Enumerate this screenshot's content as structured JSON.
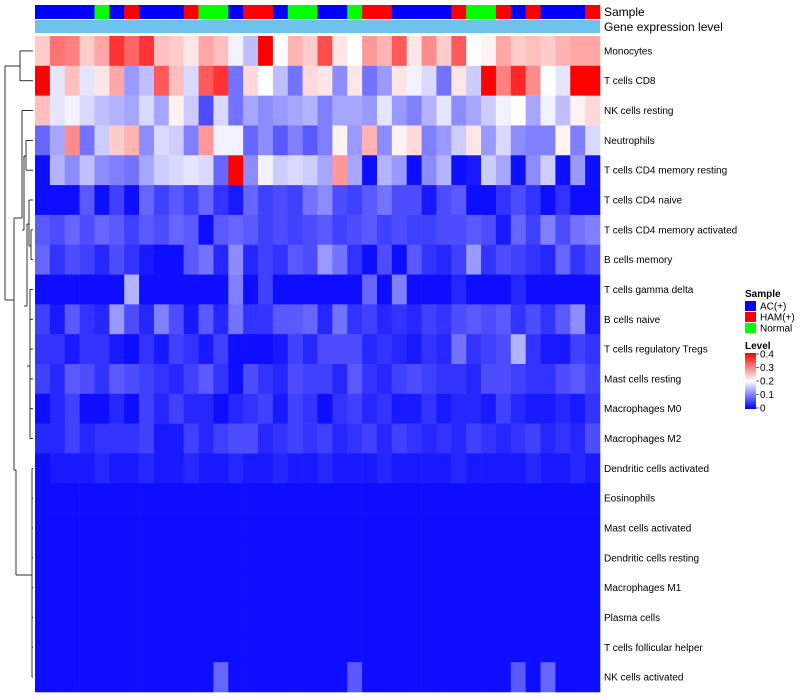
{
  "chart_data": {
    "type": "heatmap",
    "title": "",
    "annotation_tracks": [
      "Sample",
      "Gene expression level"
    ],
    "rows": [
      "Monocytes",
      "T cells CD8",
      "NK cells resting",
      "Neutrophils",
      "T cells CD4 memory resting",
      "T cells CD4 naive",
      "T cells CD4 memory activated",
      "B cells memory",
      "T cells gamma delta",
      "B cells naive",
      "T cells regulatory  Tregs",
      "Mast cells resting",
      "Macrophages M0",
      "Macrophages M2",
      "Dendritic cells activated",
      "Eosinophils",
      "Mast cells activated",
      "Dendritic cells resting",
      "Macrophages M1",
      "Plasma cells",
      "T cells follicular helper",
      "NK cells activated"
    ],
    "n_samples": 38,
    "sample_groups": [
      "AC(+)",
      "AC(+)",
      "AC(+)",
      "AC(+)",
      "Normal",
      "AC(+)",
      "HAM(+)",
      "AC(+)",
      "AC(+)",
      "AC(+)",
      "HAM(+)",
      "Normal",
      "Normal",
      "AC(+)",
      "HAM(+)",
      "HAM(+)",
      "AC(+)",
      "Normal",
      "Normal",
      "AC(+)",
      "AC(+)",
      "Normal",
      "HAM(+)",
      "HAM(+)",
      "AC(+)",
      "AC(+)",
      "AC(+)",
      "AC(+)",
      "HAM(+)",
      "Normal",
      "Normal",
      "HAM(+)",
      "AC(+)",
      "HAM(+)",
      "AC(+)",
      "AC(+)",
      "AC(+)",
      "HAM(+)"
    ],
    "gene_expression_level": "uniform (single level across all samples)",
    "values": [
      [
        0.24,
        0.31,
        0.3,
        0.24,
        0.27,
        0.36,
        0.32,
        0.36,
        0.25,
        0.24,
        0.22,
        0.27,
        0.25,
        0.19,
        0.15,
        0.4,
        0.2,
        0.26,
        0.24,
        0.34,
        0.22,
        0.2,
        0.28,
        0.26,
        0.33,
        0.22,
        0.29,
        0.24,
        0.33,
        0.2,
        0.21,
        0.27,
        0.24,
        0.25,
        0.24,
        0.26,
        0.27,
        0.27
      ],
      [
        0.4,
        0.18,
        0.25,
        0.18,
        0.22,
        0.27,
        0.12,
        0.15,
        0.33,
        0.25,
        0.17,
        0.33,
        0.36,
        0.09,
        0.23,
        0.2,
        0.15,
        0.09,
        0.23,
        0.22,
        0.11,
        0.22,
        0.09,
        0.12,
        0.22,
        0.19,
        0.17,
        0.09,
        0.22,
        0.16,
        0.4,
        0.3,
        0.37,
        0.29,
        0.2,
        0.18,
        0.4,
        0.4
      ],
      [
        0.25,
        0.18,
        0.19,
        0.17,
        0.15,
        0.14,
        0.13,
        0.17,
        0.13,
        0.21,
        0.16,
        0.06,
        0.17,
        0.09,
        0.13,
        0.11,
        0.12,
        0.13,
        0.14,
        0.1,
        0.13,
        0.13,
        0.12,
        0.18,
        0.12,
        0.1,
        0.14,
        0.18,
        0.11,
        0.13,
        0.16,
        0.19,
        0.2,
        0.13,
        0.19,
        0.15,
        0.21,
        0.23
      ],
      [
        0.08,
        0.13,
        0.29,
        0.09,
        0.16,
        0.24,
        0.26,
        0.11,
        0.17,
        0.16,
        0.1,
        0.28,
        0.19,
        0.19,
        0.08,
        0.11,
        0.07,
        0.1,
        0.07,
        0.1,
        0.21,
        0.12,
        0.26,
        0.11,
        0.21,
        0.23,
        0.1,
        0.12,
        0.16,
        0.22,
        0.12,
        0.17,
        0.11,
        0.1,
        0.1,
        0.21,
        0.1,
        0.17
      ],
      [
        0.01,
        0.14,
        0.11,
        0.15,
        0.11,
        0.1,
        0.09,
        0.13,
        0.16,
        0.17,
        0.18,
        0.17,
        0.08,
        0.4,
        0.11,
        0.19,
        0.16,
        0.17,
        0.16,
        0.13,
        0.28,
        0.13,
        0.01,
        0.14,
        0.12,
        0.01,
        0.11,
        0.14,
        0.01,
        0.02,
        0.16,
        0.13,
        0.01,
        0.11,
        0.16,
        0.01,
        0.12,
        0.01
      ],
      [
        0.01,
        0.01,
        0.01,
        0.07,
        0.01,
        0.05,
        0.01,
        0.08,
        0.05,
        0.07,
        0.05,
        0.08,
        0.04,
        0.02,
        0.08,
        0.05,
        0.06,
        0.05,
        0.09,
        0.11,
        0.06,
        0.05,
        0.07,
        0.09,
        0.06,
        0.06,
        0.02,
        0.06,
        0.07,
        0.01,
        0.01,
        0.04,
        0.06,
        0.04,
        0.01,
        0.04,
        0.01,
        0.01
      ],
      [
        0.07,
        0.06,
        0.08,
        0.06,
        0.08,
        0.07,
        0.05,
        0.07,
        0.06,
        0.08,
        0.07,
        0.01,
        0.07,
        0.08,
        0.07,
        0.05,
        0.06,
        0.05,
        0.06,
        0.07,
        0.05,
        0.06,
        0.07,
        0.05,
        0.06,
        0.05,
        0.05,
        0.06,
        0.06,
        0.07,
        0.06,
        0.02,
        0.08,
        0.05,
        0.1,
        0.06,
        0.09,
        0.1
      ],
      [
        0.08,
        0.04,
        0.06,
        0.05,
        0.03,
        0.06,
        0.04,
        0.02,
        0.01,
        0.01,
        0.07,
        0.09,
        0.03,
        0.11,
        0.03,
        0.05,
        0.04,
        0.07,
        0.06,
        0.12,
        0.09,
        0.04,
        0.01,
        0.06,
        0.01,
        0.07,
        0.04,
        0.03,
        0.05,
        0.12,
        0.04,
        0.06,
        0.05,
        0.04,
        0.03,
        0.08,
        0.04,
        0.06
      ],
      [
        0.01,
        0.01,
        0.01,
        0.01,
        0.01,
        0.01,
        0.14,
        0.01,
        0.01,
        0.01,
        0.01,
        0.01,
        0.01,
        0.1,
        0.01,
        0.05,
        0.01,
        0.01,
        0.01,
        0.01,
        0.01,
        0.01,
        0.08,
        0.01,
        0.1,
        0.01,
        0.01,
        0.01,
        0.03,
        0.01,
        0.01,
        0.01,
        0.03,
        0.01,
        0.01,
        0.01,
        0.01,
        0.01
      ],
      [
        0.05,
        0.02,
        0.07,
        0.04,
        0.03,
        0.12,
        0.06,
        0.03,
        0.1,
        0.06,
        0.02,
        0.07,
        0.03,
        0.09,
        0.04,
        0.04,
        0.07,
        0.07,
        0.08,
        0.03,
        0.09,
        0.04,
        0.05,
        0.03,
        0.04,
        0.03,
        0.05,
        0.04,
        0.06,
        0.07,
        0.06,
        0.07,
        0.04,
        0.06,
        0.04,
        0.07,
        0.11,
        0.02
      ],
      [
        0.04,
        0.04,
        0.02,
        0.04,
        0.04,
        0.02,
        0.01,
        0.04,
        0.02,
        0.05,
        0.04,
        0.02,
        0.05,
        0.01,
        0.01,
        0.01,
        0.02,
        0.05,
        0.03,
        0.06,
        0.06,
        0.06,
        0.03,
        0.04,
        0.03,
        0.02,
        0.04,
        0.03,
        0.09,
        0.04,
        0.05,
        0.06,
        0.14,
        0.04,
        0.02,
        0.02,
        0.05,
        0.04
      ],
      [
        0.05,
        0.03,
        0.07,
        0.06,
        0.04,
        0.07,
        0.06,
        0.05,
        0.04,
        0.03,
        0.05,
        0.07,
        0.04,
        0.01,
        0.06,
        0.04,
        0.03,
        0.06,
        0.05,
        0.05,
        0.03,
        0.07,
        0.04,
        0.03,
        0.05,
        0.06,
        0.05,
        0.04,
        0.04,
        0.03,
        0.06,
        0.06,
        0.05,
        0.04,
        0.04,
        0.06,
        0.07,
        0.05
      ],
      [
        0.01,
        0.03,
        0.05,
        0.01,
        0.01,
        0.03,
        0.01,
        0.05,
        0.03,
        0.05,
        0.03,
        0.03,
        0.01,
        0.03,
        0.04,
        0.05,
        0.02,
        0.05,
        0.04,
        0.01,
        0.04,
        0.05,
        0.03,
        0.04,
        0.02,
        0.02,
        0.04,
        0.02,
        0.03,
        0.03,
        0.02,
        0.05,
        0.03,
        0.02,
        0.02,
        0.03,
        0.02,
        0.04
      ],
      [
        0.03,
        0.03,
        0.05,
        0.03,
        0.04,
        0.04,
        0.04,
        0.05,
        0.02,
        0.02,
        0.05,
        0.03,
        0.05,
        0.06,
        0.06,
        0.03,
        0.04,
        0.05,
        0.04,
        0.05,
        0.03,
        0.04,
        0.05,
        0.03,
        0.05,
        0.04,
        0.03,
        0.04,
        0.03,
        0.05,
        0.04,
        0.03,
        0.04,
        0.05,
        0.03,
        0.04,
        0.03,
        0.06
      ],
      [
        0.01,
        0.02,
        0.02,
        0.02,
        0.03,
        0.02,
        0.02,
        0.03,
        0.02,
        0.02,
        0.03,
        0.02,
        0.02,
        0.03,
        0.02,
        0.02,
        0.03,
        0.02,
        0.02,
        0.03,
        0.02,
        0.02,
        0.02,
        0.03,
        0.02,
        0.02,
        0.02,
        0.02,
        0.03,
        0.02,
        0.02,
        0.02,
        0.02,
        0.03,
        0.02,
        0.02,
        0.03,
        0.02
      ],
      [
        0.01,
        0.01,
        0.01,
        0.01,
        0.01,
        0.01,
        0.01,
        0.01,
        0.01,
        0.01,
        0.01,
        0.01,
        0.01,
        0.01,
        0.01,
        0.01,
        0.01,
        0.01,
        0.01,
        0.01,
        0.01,
        0.01,
        0.01,
        0.01,
        0.01,
        0.01,
        0.01,
        0.01,
        0.01,
        0.01,
        0.01,
        0.01,
        0.01,
        0.01,
        0.01,
        0.01,
        0.01,
        0.01
      ],
      [
        0.01,
        0.01,
        0.01,
        0.01,
        0.01,
        0.01,
        0.01,
        0.01,
        0.01,
        0.01,
        0.01,
        0.01,
        0.01,
        0.01,
        0.01,
        0.01,
        0.01,
        0.01,
        0.01,
        0.01,
        0.01,
        0.01,
        0.01,
        0.01,
        0.01,
        0.01,
        0.01,
        0.01,
        0.01,
        0.01,
        0.01,
        0.01,
        0.01,
        0.01,
        0.01,
        0.01,
        0.01,
        0.01
      ],
      [
        0.01,
        0.01,
        0.01,
        0.01,
        0.01,
        0.01,
        0.01,
        0.01,
        0.01,
        0.01,
        0.01,
        0.01,
        0.01,
        0.01,
        0.01,
        0.01,
        0.01,
        0.01,
        0.01,
        0.01,
        0.01,
        0.01,
        0.01,
        0.01,
        0.01,
        0.01,
        0.01,
        0.01,
        0.01,
        0.01,
        0.01,
        0.01,
        0.01,
        0.01,
        0.01,
        0.01,
        0.01,
        0.01
      ],
      [
        0.01,
        0.01,
        0.01,
        0.01,
        0.01,
        0.01,
        0.01,
        0.01,
        0.01,
        0.01,
        0.01,
        0.01,
        0.01,
        0.01,
        0.01,
        0.01,
        0.01,
        0.01,
        0.01,
        0.01,
        0.01,
        0.01,
        0.01,
        0.01,
        0.01,
        0.01,
        0.01,
        0.01,
        0.01,
        0.01,
        0.01,
        0.01,
        0.01,
        0.01,
        0.01,
        0.01,
        0.01,
        0.01
      ],
      [
        0.01,
        0.01,
        0.01,
        0.01,
        0.01,
        0.01,
        0.01,
        0.01,
        0.01,
        0.01,
        0.01,
        0.01,
        0.01,
        0.01,
        0.01,
        0.01,
        0.01,
        0.01,
        0.01,
        0.01,
        0.01,
        0.01,
        0.01,
        0.01,
        0.01,
        0.01,
        0.01,
        0.01,
        0.01,
        0.01,
        0.01,
        0.01,
        0.01,
        0.01,
        0.01,
        0.01,
        0.01,
        0.01
      ],
      [
        0.01,
        0.01,
        0.01,
        0.01,
        0.01,
        0.01,
        0.01,
        0.01,
        0.01,
        0.01,
        0.01,
        0.01,
        0.01,
        0.01,
        0.01,
        0.01,
        0.01,
        0.01,
        0.01,
        0.01,
        0.01,
        0.01,
        0.01,
        0.01,
        0.01,
        0.01,
        0.01,
        0.01,
        0.01,
        0.01,
        0.01,
        0.01,
        0.01,
        0.01,
        0.01,
        0.01,
        0.01,
        0.01
      ],
      [
        0.01,
        0.01,
        0.01,
        0.01,
        0.01,
        0.01,
        0.01,
        0.01,
        0.01,
        0.01,
        0.01,
        0.01,
        0.08,
        0.01,
        0.01,
        0.01,
        0.01,
        0.01,
        0.01,
        0.01,
        0.01,
        0.07,
        0.01,
        0.01,
        0.01,
        0.01,
        0.01,
        0.01,
        0.01,
        0.01,
        0.01,
        0.01,
        0.07,
        0.01,
        0.08,
        0.01,
        0.01,
        0.01
      ]
    ],
    "value_range": [
      0,
      0.4
    ],
    "legend": {
      "placement": "right",
      "sample_title": "Sample",
      "sample_entries": [
        "AC(+)",
        "HAM(+)",
        "Normal"
      ],
      "level_title": "Level",
      "level_ticks": [
        "0.4",
        "0.3",
        "0.2",
        "0.1",
        "0"
      ]
    },
    "row_dendrogram": "left",
    "colors": {
      "ac": "#0000ff",
      "ham": "#ff0000",
      "normal": "#00ff00",
      "gene_level": "#6ec3ec",
      "low": "#0000ff",
      "mid": "#ffffff",
      "high": "#ff0000"
    }
  }
}
